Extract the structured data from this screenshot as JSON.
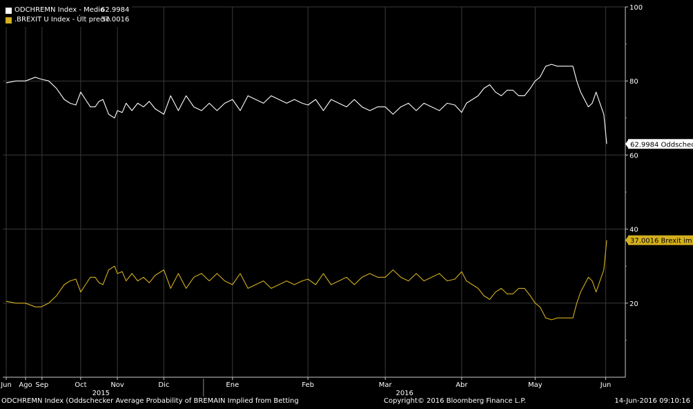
{
  "legend": {
    "items": [
      {
        "label": "ODCHREMN Index - Medio",
        "value": "62.9984",
        "color": "#ffffff"
      },
      {
        "label": ".BREXIT U Index - Últ precio",
        "value": "37.0016",
        "color": "#d4b020"
      }
    ]
  },
  "footer": {
    "description": "ODCHREMN Index (Oddschecker Average Probability of BREMAIN Implied from Betting",
    "copyright": "Copyright© 2016 Bloomberg Finance L.P.",
    "timestamp": "14-Jun-2016 09:10:16"
  },
  "colors": {
    "background": "#000000",
    "bremain": "#ffffff",
    "brexit": "#d4b020",
    "grid": "#3a3a3a"
  },
  "chart_data": {
    "type": "line",
    "grid": true,
    "legend_position": "top-left",
    "y_axis_side": "right",
    "ylim": [
      0,
      100
    ],
    "yticks": [
      20,
      40,
      60,
      80,
      100
    ],
    "x_ticks": [
      "Jun",
      "Ago",
      "Sep",
      "Oct",
      "Nov",
      "Dic",
      "Ene",
      "Feb",
      "Mar",
      "Abr",
      "May",
      "Jun"
    ],
    "x_tick_positions": [
      0.0,
      1.0,
      1.85,
      3.85,
      5.75,
      8.15,
      11.7,
      15.6,
      19.6,
      23.55,
      27.35,
      31.0
    ],
    "x_years": [
      {
        "label": "2015",
        "pos": 4.9
      },
      {
        "label": "2016",
        "pos": 20.6
      }
    ],
    "x_year_boundary": 10.2,
    "xlim": [
      0,
      31.8
    ],
    "series": [
      {
        "name": "ODCHREMN Index - Medio",
        "color": "#ffffff",
        "end_label": "62.9984 Oddscheck",
        "x": [
          0,
          0.5,
          1.0,
          1.5,
          1.8,
          2.2,
          2.6,
          3.0,
          3.3,
          3.6,
          3.85,
          4.1,
          4.35,
          4.6,
          4.8,
          5.0,
          5.3,
          5.6,
          5.75,
          6.0,
          6.2,
          6.5,
          6.8,
          7.1,
          7.4,
          7.7,
          8.15,
          8.5,
          8.9,
          9.3,
          9.7,
          10.1,
          10.5,
          10.9,
          11.3,
          11.7,
          12.1,
          12.5,
          12.9,
          13.3,
          13.7,
          14.1,
          14.5,
          14.9,
          15.3,
          15.6,
          16.0,
          16.4,
          16.8,
          17.2,
          17.6,
          18.0,
          18.4,
          18.8,
          19.2,
          19.6,
          20.0,
          20.4,
          20.8,
          21.2,
          21.6,
          22.0,
          22.4,
          22.8,
          23.2,
          23.55,
          23.8,
          24.1,
          24.4,
          24.7,
          25.0,
          25.3,
          25.6,
          25.9,
          26.2,
          26.5,
          26.8,
          27.1,
          27.35,
          27.6,
          27.9,
          28.2,
          28.5,
          28.8,
          29.1,
          29.3,
          29.5,
          29.7,
          29.9,
          30.1,
          30.3,
          30.5,
          30.7,
          30.9,
          31.05
        ],
        "y": [
          79.5,
          80,
          80,
          81,
          80.5,
          80,
          78,
          75,
          74,
          73.5,
          77,
          75,
          73,
          73,
          74.5,
          75,
          71,
          70,
          72,
          71.5,
          74,
          72,
          74,
          73,
          74.5,
          72.5,
          71,
          76,
          72,
          76,
          73,
          72,
          74,
          72,
          74,
          75,
          72,
          76,
          75,
          74,
          76,
          75,
          74,
          75,
          74,
          73.5,
          75,
          72,
          75,
          74,
          73,
          75,
          73,
          72,
          73,
          73,
          71,
          73,
          74,
          72,
          74,
          73,
          72,
          74,
          73.5,
          71.5,
          74,
          75,
          76,
          78,
          79,
          77,
          76,
          77.5,
          77.5,
          76,
          76,
          78,
          80,
          81,
          84,
          84.5,
          84,
          84,
          84,
          84,
          80,
          77,
          75,
          73,
          74,
          77,
          74,
          71,
          63
        ]
      },
      {
        "name": ".BREXIT U Index - Últ precio",
        "color": "#d4b020",
        "end_label": "37.0016 Brexit im",
        "x": [
          0,
          0.5,
          1.0,
          1.5,
          1.8,
          2.2,
          2.6,
          3.0,
          3.3,
          3.6,
          3.85,
          4.1,
          4.35,
          4.6,
          4.8,
          5.0,
          5.3,
          5.6,
          5.75,
          6.0,
          6.2,
          6.5,
          6.8,
          7.1,
          7.4,
          7.7,
          8.15,
          8.5,
          8.9,
          9.3,
          9.7,
          10.1,
          10.5,
          10.9,
          11.3,
          11.7,
          12.1,
          12.5,
          12.9,
          13.3,
          13.7,
          14.1,
          14.5,
          14.9,
          15.3,
          15.6,
          16.0,
          16.4,
          16.8,
          17.2,
          17.6,
          18.0,
          18.4,
          18.8,
          19.2,
          19.6,
          20.0,
          20.4,
          20.8,
          21.2,
          21.6,
          22.0,
          22.4,
          22.8,
          23.2,
          23.55,
          23.8,
          24.1,
          24.4,
          24.7,
          25.0,
          25.3,
          25.6,
          25.9,
          26.2,
          26.5,
          26.8,
          27.1,
          27.35,
          27.6,
          27.9,
          28.2,
          28.5,
          28.8,
          29.1,
          29.3,
          29.5,
          29.7,
          29.9,
          30.1,
          30.3,
          30.5,
          30.7,
          30.9,
          31.05
        ],
        "y": [
          20.5,
          20,
          20,
          19,
          19,
          20,
          22,
          25,
          26,
          26.5,
          23,
          25,
          27,
          27,
          25.5,
          25,
          29,
          30,
          28,
          28.5,
          26,
          28,
          26,
          27,
          25.5,
          27.5,
          29,
          24,
          28,
          24,
          27,
          28,
          26,
          28,
          26,
          25,
          28,
          24,
          25,
          26,
          24,
          25,
          26,
          25,
          26,
          26.5,
          25,
          28,
          25,
          26,
          27,
          25,
          27,
          28,
          27,
          27,
          29,
          27,
          26,
          28,
          26,
          27,
          28,
          26,
          26.5,
          28.5,
          26,
          25,
          24,
          22,
          21,
          23,
          24,
          22.5,
          22.5,
          24,
          24,
          22,
          20,
          19,
          16,
          15.5,
          16,
          16,
          16,
          16,
          20,
          23,
          25,
          27,
          26,
          23,
          26,
          29,
          37
        ]
      }
    ]
  }
}
